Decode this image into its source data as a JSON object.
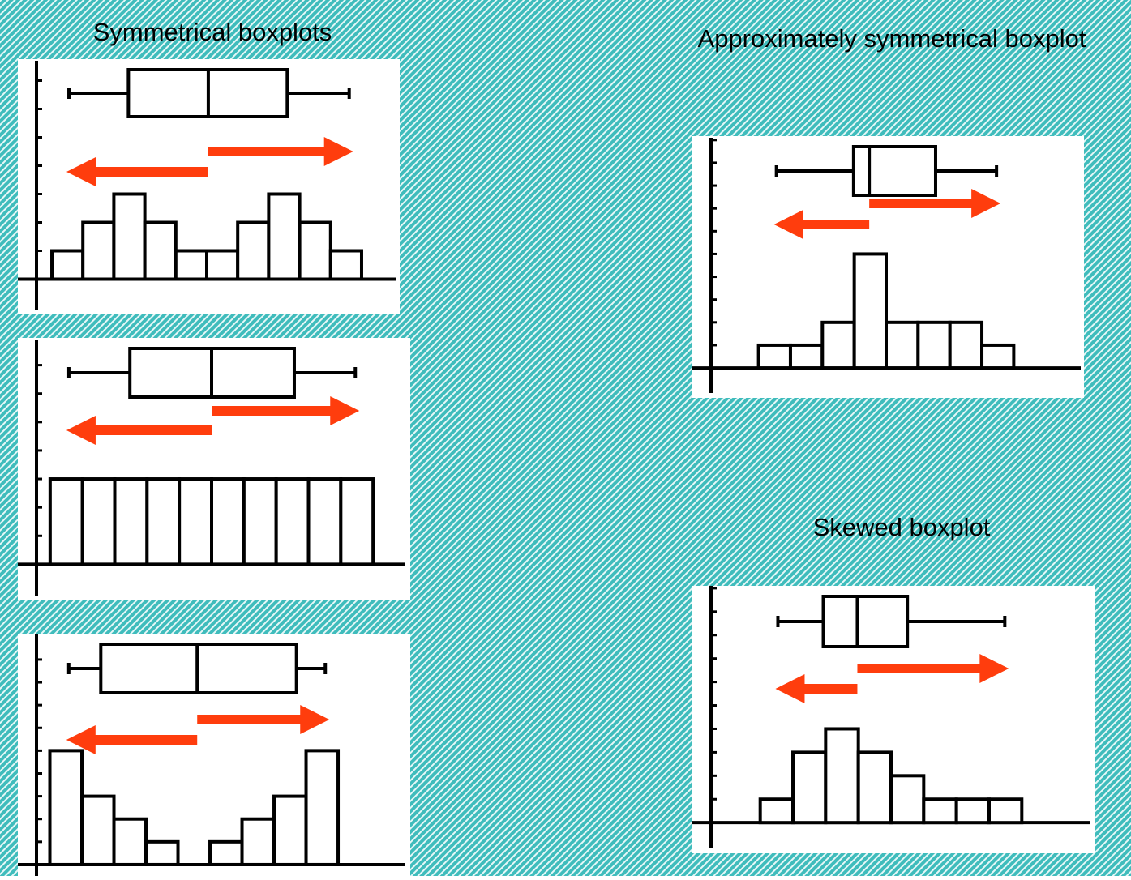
{
  "chart_data": [
    {
      "type": "histogram",
      "title": "Symmetrical boxplots",
      "bins": [
        0,
        1,
        2,
        3,
        4,
        5,
        6,
        7,
        8,
        9,
        10
      ],
      "values": [
        1,
        2,
        3,
        2,
        1,
        1,
        2,
        3,
        2,
        1
      ],
      "box": {
        "whislo": 0.55,
        "q1": 2.47,
        "med": 5.05,
        "q3": 7.6,
        "whishi": 9.6
      },
      "xlim": [
        -1.1,
        11.1
      ],
      "ylim": [
        -1.1,
        7.7
      ],
      "yticks": [
        1,
        2,
        3,
        4,
        5,
        6,
        7
      ],
      "color": "#ffffff"
    },
    {
      "type": "histogram",
      "bins": [
        0,
        1,
        2,
        3,
        4,
        5,
        6,
        7,
        8,
        9,
        10
      ],
      "values": [
        3,
        3,
        3,
        3,
        3,
        3,
        3,
        3,
        3,
        3
      ],
      "box": {
        "whislo": 0.58,
        "q1": 2.47,
        "med": 5.0,
        "q3": 7.56,
        "whishi": 9.45
      },
      "xlim": [
        -1.0,
        11.0
      ],
      "ylim": [
        -1.1,
        7.9
      ],
      "yticks": [
        1,
        2,
        3,
        4,
        5,
        6,
        7
      ],
      "color": "#ffffff"
    },
    {
      "type": "histogram",
      "bins": [
        0,
        1,
        2,
        3,
        4,
        5,
        6,
        7,
        8,
        9
      ],
      "values": [
        5,
        3,
        2,
        1,
        0,
        1,
        2,
        3,
        5
      ],
      "box": {
        "whislo": 0.59,
        "q1": 1.59,
        "med": 4.6,
        "q3": 7.7,
        "whishi": 8.6
      },
      "xlim": [
        -1.0,
        11.1
      ],
      "ylim": [
        -0.5,
        10.1
      ],
      "yticks": [
        1,
        2,
        3,
        4,
        5,
        6,
        7,
        8,
        9
      ],
      "color": "#ffffff"
    },
    {
      "type": "histogram",
      "title": "Approximately symmetrical boxplot",
      "bins": [
        0,
        1,
        2,
        3,
        4,
        5,
        6,
        7,
        8
      ],
      "values": [
        1,
        1,
        2,
        5,
        2,
        2,
        2,
        1
      ],
      "box": {
        "whislo": 0.56,
        "q1": 2.98,
        "med": 3.47,
        "q3": 5.55,
        "whishi": 7.46
      },
      "xlim": [
        -2.1,
        10.1
      ],
      "ylim": [
        -1.1,
        10.1
      ],
      "yticks": [
        1,
        2,
        3,
        4,
        5,
        6,
        7,
        8,
        9,
        10
      ],
      "color": "#ffffff"
    },
    {
      "type": "histogram",
      "title": "Skewed boxplot",
      "bins": [
        0,
        1,
        2,
        3,
        4,
        5,
        6,
        7,
        8
      ],
      "values": [
        1,
        3,
        4,
        3,
        2,
        1,
        1,
        1
      ],
      "box": {
        "whislo": 0.54,
        "q1": 1.93,
        "med": 2.97,
        "q3": 4.5,
        "whishi": 7.48
      },
      "xlim": [
        -2.1,
        10.1
      ],
      "ylim": [
        -1.1,
        10.1
      ],
      "yticks": [
        1,
        2,
        3,
        4,
        5,
        6,
        7,
        8,
        9,
        10
      ],
      "color": "#ffffff"
    }
  ]
}
